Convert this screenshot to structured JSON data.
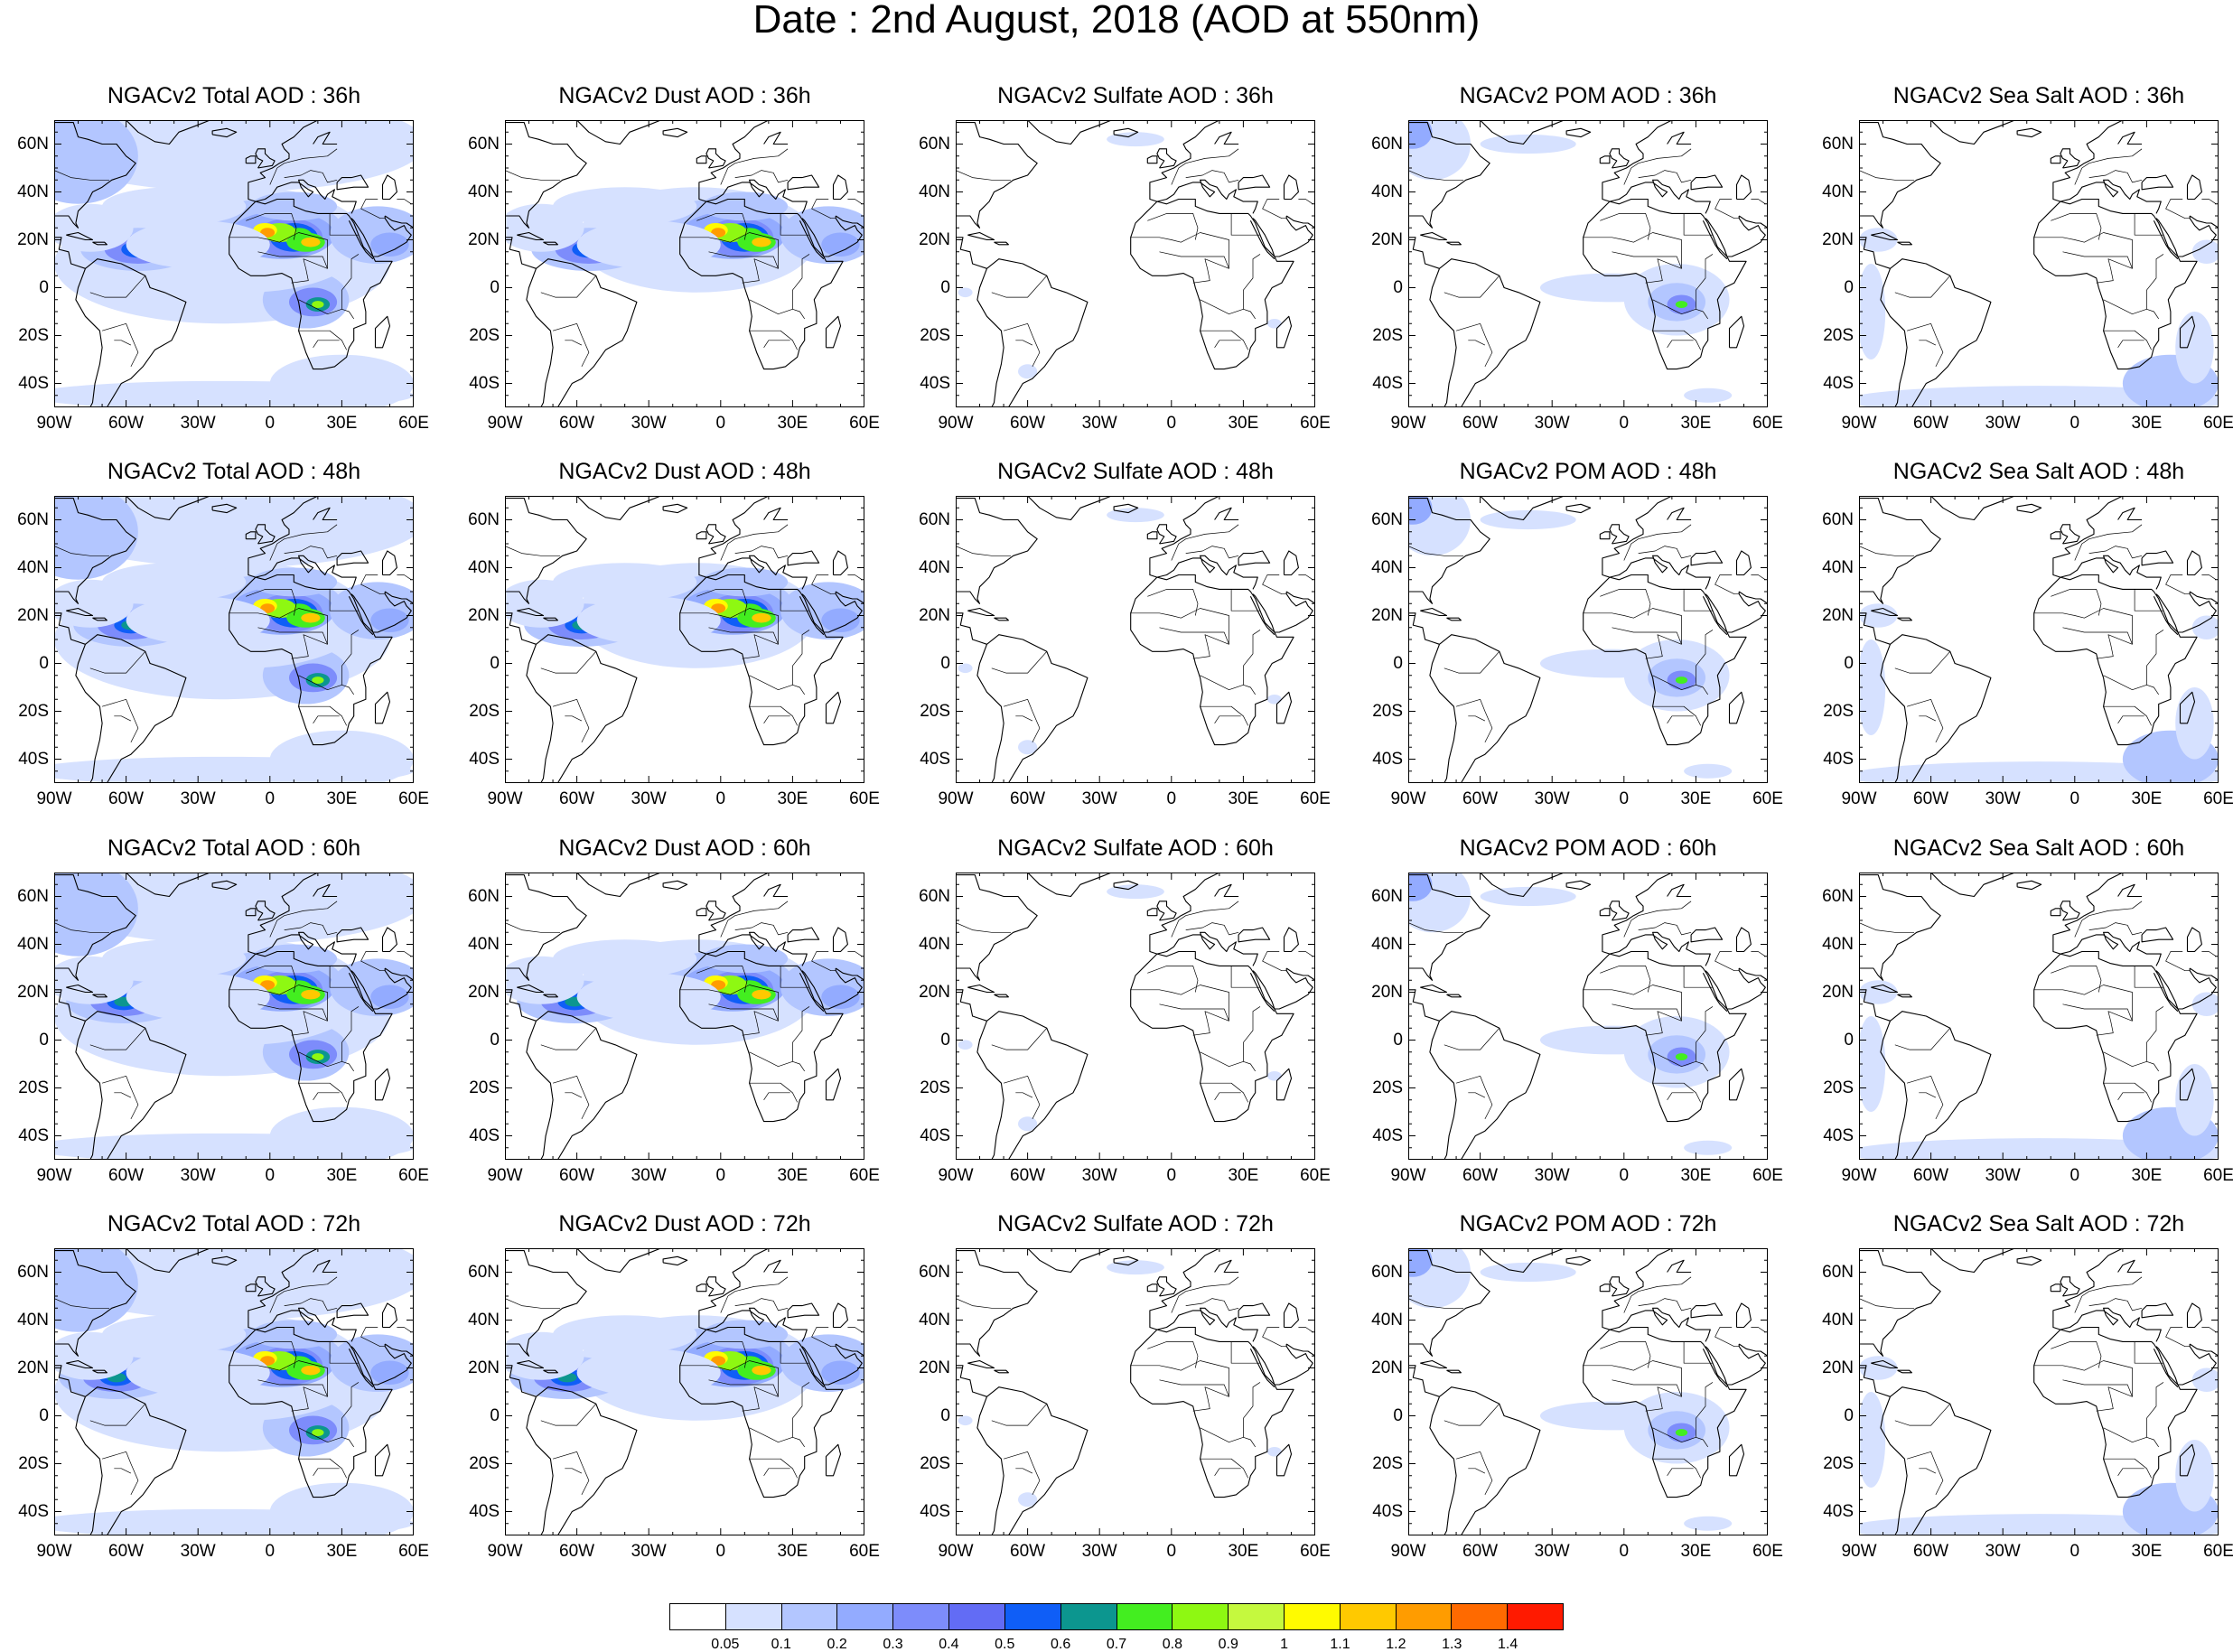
{
  "title": "Date : 2nd August, 2018 (AOD at 550nm)",
  "lat_labels": [
    "60N",
    "40N",
    "20N",
    "0",
    "20S",
    "40S"
  ],
  "lon_labels": [
    "90W",
    "60W",
    "30W",
    "0",
    "30E",
    "60E"
  ],
  "colorbar": {
    "colors": [
      "#ffffff",
      "#d6e1ff",
      "#b3c6ff",
      "#93abff",
      "#7d8cfb",
      "#626cf5",
      "#0f5ef7",
      "#0c968f",
      "#43ee20",
      "#8ef812",
      "#c5f93e",
      "#fffb00",
      "#ffc900",
      "#ff9c00",
      "#ff6a00",
      "#ff1a00"
    ],
    "labels": [
      "0.05",
      "0.1",
      "0.2",
      "0.3",
      "0.4",
      "0.5",
      "0.6",
      "0.7",
      "0.8",
      "0.9",
      "1",
      "1.1",
      "1.2",
      "1.3",
      "1.4"
    ]
  },
  "panels": [
    {
      "title": "NGACv2 Total AOD : 36h",
      "species": "total",
      "hour": 36
    },
    {
      "title": "NGACv2 Dust AOD : 36h",
      "species": "dust",
      "hour": 36
    },
    {
      "title": "NGACv2 Sulfate AOD : 36h",
      "species": "sulfate",
      "hour": 36
    },
    {
      "title": "NGACv2 POM AOD : 36h",
      "species": "pom",
      "hour": 36
    },
    {
      "title": "NGACv2 Sea Salt AOD : 36h",
      "species": "seasalt",
      "hour": 36
    },
    {
      "title": "NGACv2 Total AOD : 48h",
      "species": "total",
      "hour": 48
    },
    {
      "title": "NGACv2 Dust AOD : 48h",
      "species": "dust",
      "hour": 48
    },
    {
      "title": "NGACv2 Sulfate AOD : 48h",
      "species": "sulfate",
      "hour": 48
    },
    {
      "title": "NGACv2 POM AOD : 48h",
      "species": "pom",
      "hour": 48
    },
    {
      "title": "NGACv2 Sea Salt AOD : 48h",
      "species": "seasalt",
      "hour": 48
    },
    {
      "title": "NGACv2 Total AOD : 60h",
      "species": "total",
      "hour": 60
    },
    {
      "title": "NGACv2 Dust AOD : 60h",
      "species": "dust",
      "hour": 60
    },
    {
      "title": "NGACv2 Sulfate AOD : 60h",
      "species": "sulfate",
      "hour": 60
    },
    {
      "title": "NGACv2 POM AOD : 60h",
      "species": "pom",
      "hour": 60
    },
    {
      "title": "NGACv2 Sea Salt AOD : 60h",
      "species": "seasalt",
      "hour": 60
    },
    {
      "title": "NGACv2 Total AOD : 72h",
      "species": "total",
      "hour": 72
    },
    {
      "title": "NGACv2 Dust AOD : 72h",
      "species": "dust",
      "hour": 72
    },
    {
      "title": "NGACv2 Sulfate AOD : 72h",
      "species": "sulfate",
      "hour": 72
    },
    {
      "title": "NGACv2 POM AOD : 72h",
      "species": "pom",
      "hour": 72
    },
    {
      "title": "NGACv2 Sea Salt  AOD : 72h",
      "species": "seasalt",
      "hour": 72
    }
  ]
}
